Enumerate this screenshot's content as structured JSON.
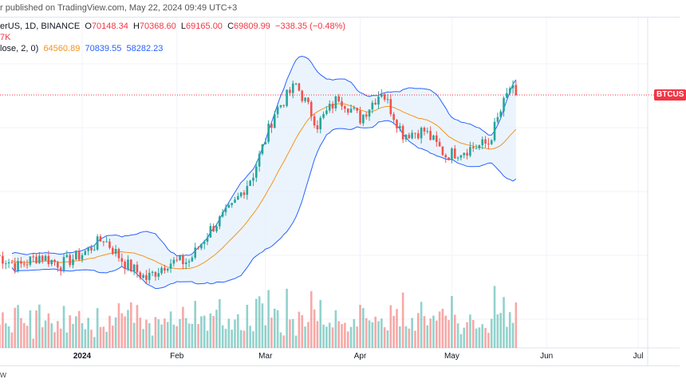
{
  "header": {
    "publish_line": "r published on TradingView.com, May 22, 2024 09:49 UTC+3",
    "symbol": "erUS, 1D, BINANCE",
    "open_label": "O",
    "open": "70148.34",
    "high_label": "H",
    "high": "70368.60",
    "low_label": "L",
    "low": "69165.00",
    "close_label": "C",
    "close": "69809.99",
    "change": "−338.35 (−0.48%)",
    "volume": "7K",
    "indicator": "lose, 2, 0)",
    "bb_basis": "64560.89",
    "bb_upper": "70839.55",
    "bb_lower": "58282.23"
  },
  "price_label": "BTCUS",
  "footer_text": "w",
  "colors": {
    "up": "#26a69a",
    "down": "#ef5350",
    "basis": "#f7931a",
    "band": "#2962ff",
    "band_fill": "#e3f0fc",
    "price_line": "#f23645"
  },
  "chart_data": {
    "type": "candlestick",
    "interval": "1D",
    "indicator": "Bollinger Bands (20, close, 2, 0)",
    "x_ticks": [
      "2024",
      "Feb",
      "Mar",
      "Apr",
      "May",
      "Jun",
      "Jul"
    ],
    "last_price": 69809.99,
    "weekly_closes": [
      [
        "2023-12-04",
        43800
      ],
      [
        "2023-12-11",
        42000
      ],
      [
        "2023-12-18",
        43700
      ],
      [
        "2023-12-25",
        42300
      ],
      [
        "2024-01-01",
        44000
      ],
      [
        "2024-01-08",
        46500
      ],
      [
        "2024-01-15",
        42500
      ],
      [
        "2024-01-22",
        40000
      ],
      [
        "2024-01-29",
        42600
      ],
      [
        "2024-02-05",
        42800
      ],
      [
        "2024-02-12",
        48000
      ],
      [
        "2024-02-19",
        51500
      ],
      [
        "2024-02-26",
        57000
      ],
      [
        "2024-03-04",
        67000
      ],
      [
        "2024-03-11",
        71500
      ],
      [
        "2024-03-18",
        65000
      ],
      [
        "2024-03-25",
        69500
      ],
      [
        "2024-04-01",
        66000
      ],
      [
        "2024-04-08",
        70500
      ],
      [
        "2024-04-15",
        63500
      ],
      [
        "2024-04-22",
        64000
      ],
      [
        "2024-04-29",
        60000
      ],
      [
        "2024-05-06",
        61000
      ],
      [
        "2024-05-13",
        62000
      ],
      [
        "2024-05-20",
        71000
      ],
      [
        "2024-05-22",
        69810
      ]
    ]
  }
}
